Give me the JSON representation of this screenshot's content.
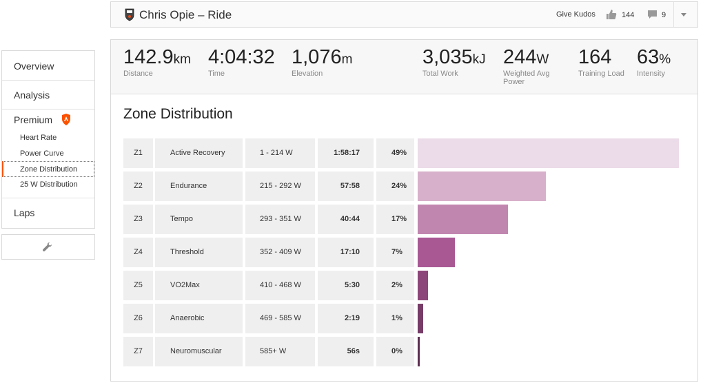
{
  "header": {
    "title": "Chris Opie – Ride",
    "kudos_label": "Give Kudos",
    "kudos_count": "144",
    "comment_count": "9"
  },
  "sidebar": {
    "overview": "Overview",
    "analysis": "Analysis",
    "premium": "Premium",
    "sub_items": [
      "Heart Rate",
      "Power Curve",
      "Zone Distribution",
      "25 W Distribution"
    ],
    "laps": "Laps"
  },
  "stats": {
    "distance": {
      "value": "142.9",
      "unit": "km",
      "label": "Distance"
    },
    "time": {
      "value": "4:04:32",
      "unit": "",
      "label": "Time"
    },
    "elevation": {
      "value": "1,076",
      "unit": "m",
      "label": "Elevation"
    },
    "work": {
      "value": "3,035",
      "unit": "kJ",
      "label": "Total Work"
    },
    "power": {
      "value": "244",
      "unit": "W",
      "label": "Weighted Avg Power"
    },
    "load": {
      "value": "164",
      "unit": "",
      "label": "Training Load"
    },
    "intensity": {
      "value": "63",
      "unit": "%",
      "label": "Intensity"
    }
  },
  "zone_title": "Zone Distribution",
  "zones": [
    {
      "zone": "Z1",
      "name": "Active Recovery",
      "range": "1 - 214 W",
      "time": "1:58:17",
      "pct": "49%",
      "share": 49,
      "color": "#ecdbe8"
    },
    {
      "zone": "Z2",
      "name": "Endurance",
      "range": "215 - 292 W",
      "time": "57:58",
      "pct": "24%",
      "share": 24,
      "color": "#d7b0cb"
    },
    {
      "zone": "Z3",
      "name": "Tempo",
      "range": "293 - 351 W",
      "time": "40:44",
      "pct": "17%",
      "share": 17,
      "color": "#c186b0"
    },
    {
      "zone": "Z4",
      "name": "Threshold",
      "range": "352 - 409 W",
      "time": "17:10",
      "pct": "7%",
      "share": 7,
      "color": "#a95894"
    },
    {
      "zone": "Z5",
      "name": "VO2Max",
      "range": "410 - 468 W",
      "time": "5:30",
      "pct": "2%",
      "share": 2,
      "color": "#8d4679"
    },
    {
      "zone": "Z6",
      "name": "Anaerobic",
      "range": "469 - 585 W",
      "time": "2:19",
      "pct": "1%",
      "share": 1,
      "color": "#773c68"
    },
    {
      "zone": "Z7",
      "name": "Neuromuscular",
      "range": "585+ W",
      "time": "56s",
      "pct": "0%",
      "share": 0.4,
      "color": "#5e2f52"
    }
  ]
}
